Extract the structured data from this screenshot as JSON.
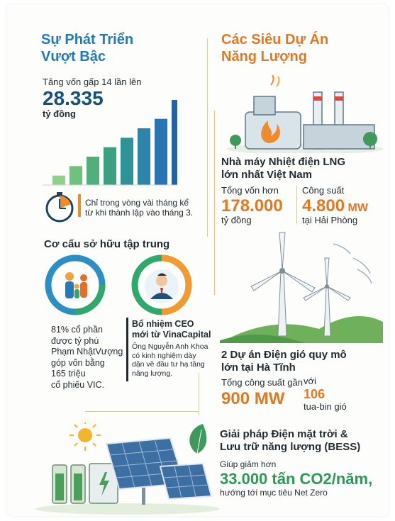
{
  "left": {
    "title_line1": "Sự Phát Triển",
    "title_line2": "Vượt Bậc",
    "capital_intro": "Tăng vốn gấp 14 lần lên",
    "capital_value": "28.335",
    "capital_unit": "tỷ đồng",
    "bar_values": [
      1,
      2,
      3,
      4,
      5,
      6,
      7,
      9
    ],
    "timer_text_line1": "Chỉ trong vòng vài tháng kể",
    "timer_text_line2": "từ khi thành lập vào tháng 3.",
    "ownership_title": "Cơ cấu sở hữu tập trung",
    "ownership_text": [
      "81% cổ phần",
      "được tỷ phú",
      "Phạm NhậtVượng",
      "góp vốn bằng",
      "165 triệu",
      "cổ phiếu VIC."
    ],
    "ceo_title_line1": "Bổ nhiệm CEO",
    "ceo_title_line2": "mới từ VinaCapital",
    "ceo_desc": [
      "Ông Nguyễn Anh Khoa",
      "có kinh nghiệm dày",
      "dặn về đầu tư hạ tầng",
      "năng lượng."
    ]
  },
  "right": {
    "title_line1": "Các Siêu Dự Án",
    "title_line2": "Năng Lượng",
    "lng": {
      "title_line1": "Nhà máy Nhiệt điện LNG",
      "title_line2": "lớn nhất Việt Nam",
      "capital_label": "Tổng vốn hơn",
      "capital_value": "178.000",
      "capital_unit": "tỷ đồng",
      "power_label": "Công suất",
      "power_value": "4.800",
      "power_unit": "MW",
      "location": "tại Hải Phòng"
    },
    "wind": {
      "title_line1": "2 Dự án Điện gió quy mô",
      "title_line2": "lớn tại Hà Tĩnh",
      "capacity_label": "Tổng công suất gần",
      "capacity_value": "900 MW",
      "turbines_prefix": "với",
      "turbines_value": "106",
      "turbines_unit": "tua-bin gió"
    }
  },
  "solar": {
    "title_line1": "Giải pháp Điện mặt trời &",
    "title_line2": "Lưu trữ năng lượng (BESS)",
    "reduce_label": "Giúp giảm hơn",
    "reduce_value": "33.000 tấn CO2/năm,",
    "goal": "hướng tới mục tiêu Net Zero"
  },
  "colors": {
    "blue": "#1f7bb6",
    "navy": "#14507e",
    "orange": "#e07a22",
    "green": "#2b9a58",
    "teal": "#2e9b9a"
  }
}
